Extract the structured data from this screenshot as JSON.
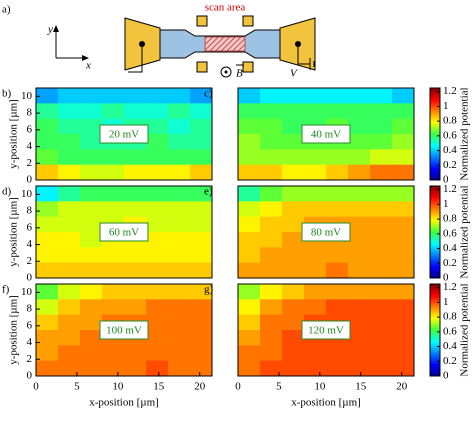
{
  "schematic": {
    "label": "a)",
    "axis_y": "y",
    "axis_x": "x",
    "scan_label": "scan area",
    "field": "B",
    "voltage": "V"
  },
  "chart_data": [
    {
      "type": "heatmap",
      "panel_label": "b)",
      "annotation": "20 mV",
      "ylabel": "y-position [µm]",
      "ylim": [
        0,
        11
      ],
      "yticks": [
        0,
        2,
        4,
        6,
        8,
        10
      ],
      "zlim": [
        0,
        1.25
      ],
      "zticks": [
        0,
        0.2,
        0.4,
        0.6,
        0.8,
        1,
        1.2
      ],
      "values": [
        [
          0.35,
          0.4,
          0.4,
          0.4,
          0.4,
          0.4,
          0.4,
          0.35
        ],
        [
          0.55,
          0.5,
          0.5,
          0.55,
          0.5,
          0.5,
          0.55,
          0.5
        ],
        [
          0.6,
          0.55,
          0.55,
          0.5,
          0.55,
          0.55,
          0.5,
          0.55
        ],
        [
          0.6,
          0.6,
          0.55,
          0.55,
          0.55,
          0.6,
          0.55,
          0.55
        ],
        [
          0.65,
          0.6,
          0.6,
          0.6,
          0.6,
          0.6,
          0.6,
          0.6
        ],
        [
          0.85,
          0.8,
          0.75,
          0.75,
          0.8,
          0.8,
          0.8,
          0.85
        ]
      ]
    },
    {
      "type": "heatmap",
      "panel_label": "c)",
      "annotation": "40 mV",
      "colorbar_label": "Normalized potential",
      "zlim": [
        0,
        1.25
      ],
      "zticks": [
        0,
        0.2,
        0.4,
        0.6,
        0.8,
        1,
        1.2
      ],
      "values": [
        [
          0.4,
          0.45,
          0.45,
          0.45,
          0.45,
          0.45,
          0.45,
          0.4
        ],
        [
          0.6,
          0.6,
          0.6,
          0.6,
          0.6,
          0.6,
          0.6,
          0.6
        ],
        [
          0.65,
          0.65,
          0.6,
          0.6,
          0.65,
          0.6,
          0.6,
          0.65
        ],
        [
          0.7,
          0.65,
          0.65,
          0.65,
          0.65,
          0.65,
          0.65,
          0.7
        ],
        [
          0.7,
          0.7,
          0.7,
          0.7,
          0.7,
          0.7,
          0.75,
          0.75
        ],
        [
          0.85,
          0.85,
          0.8,
          0.8,
          0.85,
          0.9,
          0.95,
          0.95
        ]
      ]
    },
    {
      "type": "heatmap",
      "panel_label": "d)",
      "annotation": "60 mV",
      "ylabel": "y-position [µm]",
      "ylim": [
        0,
        11
      ],
      "yticks": [
        0,
        2,
        4,
        6,
        8,
        10
      ],
      "zlim": [
        0,
        1.25
      ],
      "zticks": [
        0,
        0.2,
        0.4,
        0.6,
        0.8,
        1,
        1.2
      ],
      "values": [
        [
          0.45,
          0.55,
          0.6,
          0.6,
          0.6,
          0.6,
          0.6,
          0.6
        ],
        [
          0.7,
          0.75,
          0.75,
          0.75,
          0.75,
          0.75,
          0.75,
          0.75
        ],
        [
          0.75,
          0.75,
          0.75,
          0.75,
          0.8,
          0.75,
          0.75,
          0.75
        ],
        [
          0.8,
          0.8,
          0.75,
          0.8,
          0.8,
          0.8,
          0.8,
          0.8
        ],
        [
          0.8,
          0.8,
          0.8,
          0.8,
          0.8,
          0.8,
          0.8,
          0.8
        ],
        [
          0.85,
          0.85,
          0.85,
          0.85,
          0.85,
          0.85,
          0.85,
          0.85
        ]
      ]
    },
    {
      "type": "heatmap",
      "panel_label": "e)",
      "annotation": "80 mV",
      "colorbar_label": "Normalized potential",
      "zlim": [
        0,
        1.25
      ],
      "zticks": [
        0,
        0.2,
        0.4,
        0.6,
        0.8,
        1,
        1.2
      ],
      "values": [
        [
          0.55,
          0.65,
          0.7,
          0.7,
          0.7,
          0.7,
          0.7,
          0.7
        ],
        [
          0.75,
          0.8,
          0.85,
          0.85,
          0.85,
          0.85,
          0.85,
          0.85
        ],
        [
          0.8,
          0.85,
          0.85,
          0.9,
          0.9,
          0.9,
          0.9,
          0.9
        ],
        [
          0.85,
          0.85,
          0.9,
          0.9,
          0.9,
          0.9,
          0.9,
          0.9
        ],
        [
          0.85,
          0.9,
          0.9,
          0.9,
          0.9,
          0.9,
          0.9,
          0.9
        ],
        [
          0.9,
          0.9,
          0.9,
          0.9,
          0.95,
          0.9,
          0.9,
          0.9
        ]
      ]
    },
    {
      "type": "heatmap",
      "panel_label": "f)",
      "annotation": "100 mV",
      "ylabel": "y-position [µm]",
      "xlabel": "x-position [µm]",
      "xlim": [
        0,
        21.5
      ],
      "xticks": [
        0,
        5,
        10,
        15,
        20
      ],
      "ylim": [
        0,
        11
      ],
      "yticks": [
        0,
        2,
        4,
        6,
        8,
        10
      ],
      "zlim": [
        0,
        1.25
      ],
      "zticks": [
        0,
        0.2,
        0.4,
        0.6,
        0.8,
        1,
        1.2
      ],
      "values": [
        [
          0.65,
          0.75,
          0.8,
          0.85,
          0.85,
          0.85,
          0.85,
          0.85
        ],
        [
          0.75,
          0.85,
          0.9,
          0.9,
          0.9,
          0.95,
          0.95,
          0.95
        ],
        [
          0.85,
          0.9,
          0.9,
          0.95,
          0.95,
          0.95,
          0.95,
          0.95
        ],
        [
          0.9,
          0.9,
          0.95,
          0.95,
          0.95,
          0.95,
          0.95,
          0.95
        ],
        [
          0.9,
          0.95,
          0.95,
          0.95,
          0.95,
          0.95,
          0.95,
          0.95
        ],
        [
          0.95,
          0.95,
          0.95,
          0.95,
          0.95,
          1,
          0.95,
          0.95
        ]
      ]
    },
    {
      "type": "heatmap",
      "panel_label": "g)",
      "annotation": "120 mV",
      "xlabel": "x-position [µm]",
      "xlim": [
        0,
        21.5
      ],
      "xticks": [
        0,
        5,
        10,
        15,
        20
      ],
      "colorbar_label": "Normalized potential",
      "zlim": [
        0,
        1.25
      ],
      "zticks": [
        0,
        0.2,
        0.4,
        0.6,
        0.8,
        1,
        1.2
      ],
      "values": [
        [
          0.7,
          0.8,
          0.85,
          0.9,
          0.9,
          0.9,
          0.9,
          0.9
        ],
        [
          0.8,
          0.9,
          0.95,
          0.95,
          1,
          1,
          1,
          1
        ],
        [
          0.85,
          0.95,
          0.95,
          1,
          1,
          1,
          1,
          1
        ],
        [
          0.9,
          0.95,
          1,
          1,
          1,
          1,
          1,
          1
        ],
        [
          0.95,
          0.95,
          1,
          1,
          1,
          1,
          1,
          1
        ],
        [
          0.95,
          1,
          1,
          1,
          1,
          1,
          1,
          1
        ]
      ]
    }
  ]
}
